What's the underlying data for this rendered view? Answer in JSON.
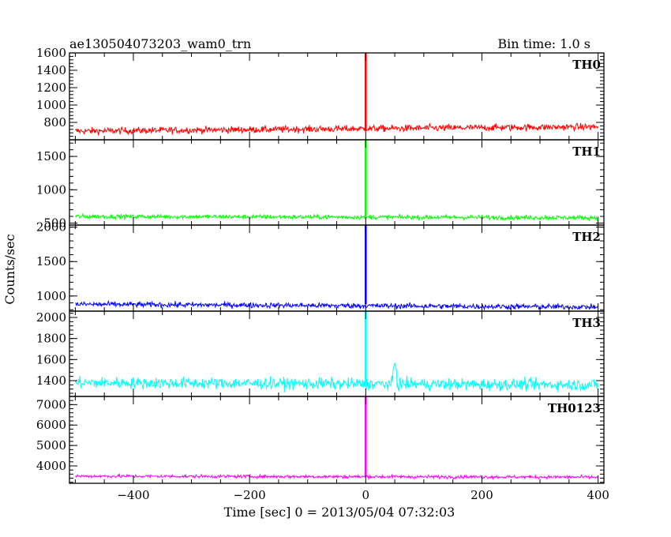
{
  "chart_data": {
    "type": "line",
    "title": "ae130504073203_wam0_trn",
    "bin_time_label": "Bin time: 1.0 s",
    "xlabel": "Time [sec] 0 = 2013/05/04 07:32:03",
    "ylabel": "Counts/sec",
    "xlim": [
      -510,
      410
    ],
    "x_ticks": [
      -400,
      -200,
      0,
      200,
      400
    ],
    "x_tick_labels": [
      "−400",
      "−200",
      "0",
      "200",
      "400"
    ],
    "x_range": [
      -500,
      400
    ],
    "spike_x": 0,
    "panels": [
      {
        "name": "TH0",
        "color": "#ff0000",
        "ylim": [
          600,
          1600
        ],
        "ticks": [
          800,
          1000,
          1200,
          1400,
          1600
        ],
        "baseline_start": 700,
        "baseline_end": 750,
        "noise": 35,
        "spike": 1600
      },
      {
        "name": "TH1",
        "color": "#00ff00",
        "ylim": [
          470,
          1750
        ],
        "ticks": [
          500,
          1000,
          1500
        ],
        "baseline_start": 600,
        "baseline_end": 580,
        "noise": 30,
        "spike": 1750
      },
      {
        "name": "TH2",
        "color": "#0000ff",
        "ylim": [
          780,
          2030
        ],
        "ticks": [
          1000,
          1500,
          2000
        ],
        "baseline_start": 880,
        "baseline_end": 840,
        "noise": 35,
        "spike": 2030
      },
      {
        "name": "TH3",
        "color": "#00ffff",
        "ylim": [
          1250,
          2060
        ],
        "ticks": [
          1400,
          1600,
          1800,
          2000
        ],
        "baseline_start": 1380,
        "baseline_end": 1360,
        "noise": 50,
        "spike": 2060,
        "bump_x": 50,
        "bump_y": 1570
      },
      {
        "name": "TH0123",
        "color": "#ff00ff",
        "ylim": [
          3150,
          7400
        ],
        "ticks": [
          4000,
          5000,
          6000,
          7000
        ],
        "baseline_start": 3500,
        "baseline_end": 3450,
        "noise": 70,
        "spike": 7400
      }
    ]
  }
}
